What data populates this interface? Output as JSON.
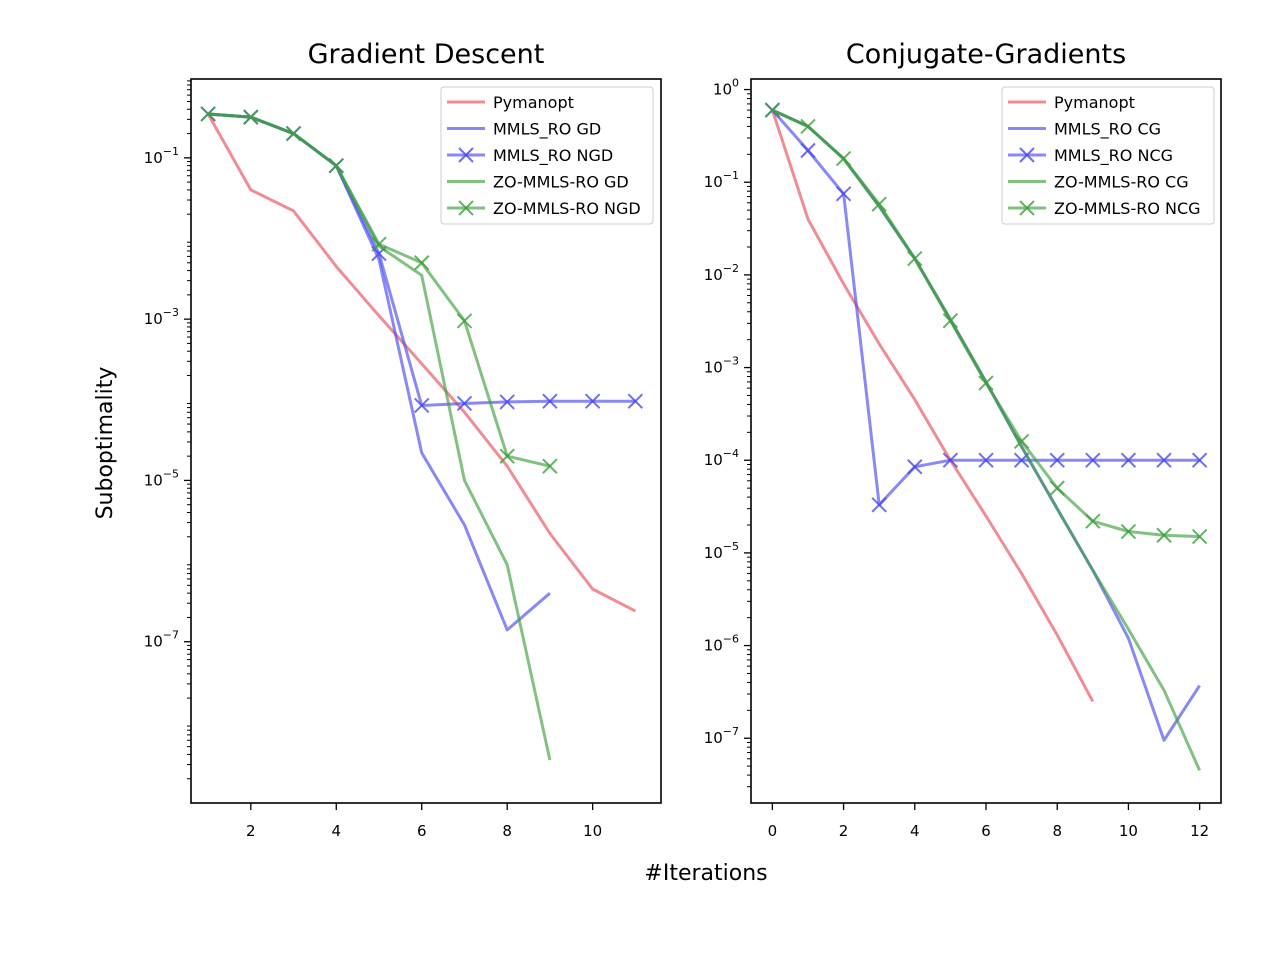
{
  "figure": {
    "xlabel": "#Iterations",
    "ylabel": "Suboptimality"
  },
  "chart_data": [
    {
      "type": "line",
      "title": "Gradient Descent",
      "xlabel": "#Iterations",
      "ylabel": "Suboptimality",
      "yscale": "log",
      "xlim": [
        0.6,
        11.6
      ],
      "ylim": [
        1e-09,
        0.95
      ],
      "xticks": [
        2,
        4,
        6,
        8,
        10
      ],
      "yticks": [
        {
          "value": 0.1,
          "base": "10",
          "exp": "−1"
        },
        {
          "value": 0.001,
          "base": "10",
          "exp": "−3"
        },
        {
          "value": 1e-05,
          "base": "10",
          "exp": "−5"
        },
        {
          "value": 1e-07,
          "base": "10",
          "exp": "−7"
        }
      ],
      "legend_position": "top-right",
      "series": [
        {
          "name": "Pymanopt",
          "color": "#e8505b",
          "marker": "none",
          "x": [
            1,
            2,
            3,
            4,
            5,
            6,
            7,
            8,
            9,
            10,
            11
          ],
          "y": [
            0.35,
            0.04,
            0.022,
            0.0045,
            0.0011,
            0.00028,
            7e-05,
            1.5e-05,
            2.2e-06,
            4.5e-07,
            2.4e-07
          ]
        },
        {
          "name": "MMLS_RO GD",
          "color": "#4a4af0",
          "marker": "none",
          "x": [
            1,
            2,
            3,
            4,
            5,
            6,
            7,
            8,
            9
          ],
          "y": [
            0.35,
            0.32,
            0.2,
            0.08,
            0.0055,
            2.2e-05,
            2.8e-06,
            1.4e-07,
            4e-07
          ]
        },
        {
          "name": "MMLS_RO NGD",
          "color": "#4a4af0",
          "marker": "x",
          "x": [
            1,
            2,
            3,
            4,
            5,
            6,
            7,
            8,
            9,
            10,
            11
          ],
          "y": [
            0.35,
            0.32,
            0.2,
            0.08,
            0.0065,
            8.5e-05,
            9e-05,
            9.4e-05,
            9.6e-05,
            9.6e-05,
            9.6e-05
          ]
        },
        {
          "name": "ZO-MMLS-RO GD",
          "color": "#3f9f3f",
          "marker": "none",
          "x": [
            1,
            2,
            3,
            4,
            5,
            6,
            7,
            8,
            9
          ],
          "y": [
            0.35,
            0.32,
            0.2,
            0.08,
            0.008,
            0.0035,
            1e-05,
            9e-07,
            3.4e-09
          ]
        },
        {
          "name": "ZO-MMLS-RO NGD",
          "color": "#3f9f3f",
          "marker": "x",
          "x": [
            1,
            2,
            3,
            4,
            5,
            6,
            7,
            8,
            9
          ],
          "y": [
            0.35,
            0.32,
            0.2,
            0.08,
            0.0085,
            0.005,
            0.00095,
            2e-05,
            1.5e-05
          ]
        }
      ]
    },
    {
      "type": "line",
      "title": "Conjugate-Gradients",
      "xlabel": "#Iterations",
      "ylabel": "Suboptimality",
      "yscale": "log",
      "xlim": [
        -0.6,
        12.6
      ],
      "ylim": [
        2e-08,
        1.3
      ],
      "xticks": [
        0,
        2,
        4,
        6,
        8,
        10,
        12
      ],
      "yticks": [
        {
          "value": 1,
          "base": "10",
          "exp": "0"
        },
        {
          "value": 0.1,
          "base": "10",
          "exp": "−1"
        },
        {
          "value": 0.01,
          "base": "10",
          "exp": "−2"
        },
        {
          "value": 0.001,
          "base": "10",
          "exp": "−3"
        },
        {
          "value": 0.0001,
          "base": "10",
          "exp": "−4"
        },
        {
          "value": 1e-05,
          "base": "10",
          "exp": "−5"
        },
        {
          "value": 1e-06,
          "base": "10",
          "exp": "−6"
        },
        {
          "value": 1e-07,
          "base": "10",
          "exp": "−7"
        }
      ],
      "legend_position": "top-right",
      "series": [
        {
          "name": "Pymanopt",
          "color": "#e8505b",
          "marker": "none",
          "x": [
            0,
            1,
            2,
            3,
            4,
            5,
            6,
            7,
            8,
            9
          ],
          "y": [
            0.6,
            0.04,
            0.008,
            0.0018,
            0.00045,
            0.0001,
            2.5e-05,
            6e-06,
            1.3e-06,
            2.5e-07
          ]
        },
        {
          "name": "MMLS_RO CG",
          "color": "#4a4af0",
          "marker": "none",
          "x": [
            0,
            1,
            2,
            3,
            4,
            5,
            6,
            7,
            8,
            9,
            10,
            11,
            12
          ],
          "y": [
            0.6,
            0.4,
            0.18,
            0.055,
            0.015,
            0.0033,
            0.0007,
            0.00014,
            3e-05,
            6.5e-06,
            1.2e-06,
            9.5e-08,
            3.7e-07
          ]
        },
        {
          "name": "MMLS_RO NCG",
          "color": "#4a4af0",
          "marker": "x",
          "x": [
            0,
            1,
            2,
            3,
            4,
            5,
            6,
            7,
            8,
            9,
            10,
            11,
            12
          ],
          "y": [
            0.6,
            0.22,
            0.075,
            3.3e-05,
            8.5e-05,
            0.0001,
            0.0001,
            0.0001,
            0.0001,
            0.0001,
            0.0001,
            0.0001,
            0.0001
          ]
        },
        {
          "name": "ZO-MMLS-RO CG",
          "color": "#3f9f3f",
          "marker": "none",
          "x": [
            0,
            1,
            2,
            3,
            4,
            5,
            6,
            7,
            8,
            9,
            10,
            11,
            12
          ],
          "y": [
            0.6,
            0.4,
            0.18,
            0.055,
            0.015,
            0.0033,
            0.0007,
            0.00014,
            3e-05,
            6.5e-06,
            1.5e-06,
            3.3e-07,
            4.5e-08
          ]
        },
        {
          "name": "ZO-MMLS-RO NCG",
          "color": "#3f9f3f",
          "marker": "x",
          "x": [
            0,
            1,
            2,
            3,
            4,
            5,
            6,
            7,
            8,
            9,
            10,
            11,
            12
          ],
          "y": [
            0.6,
            0.4,
            0.18,
            0.058,
            0.015,
            0.0032,
            0.00068,
            0.00016,
            5e-05,
            2.2e-05,
            1.7e-05,
            1.55e-05,
            1.5e-05
          ]
        }
      ]
    }
  ]
}
